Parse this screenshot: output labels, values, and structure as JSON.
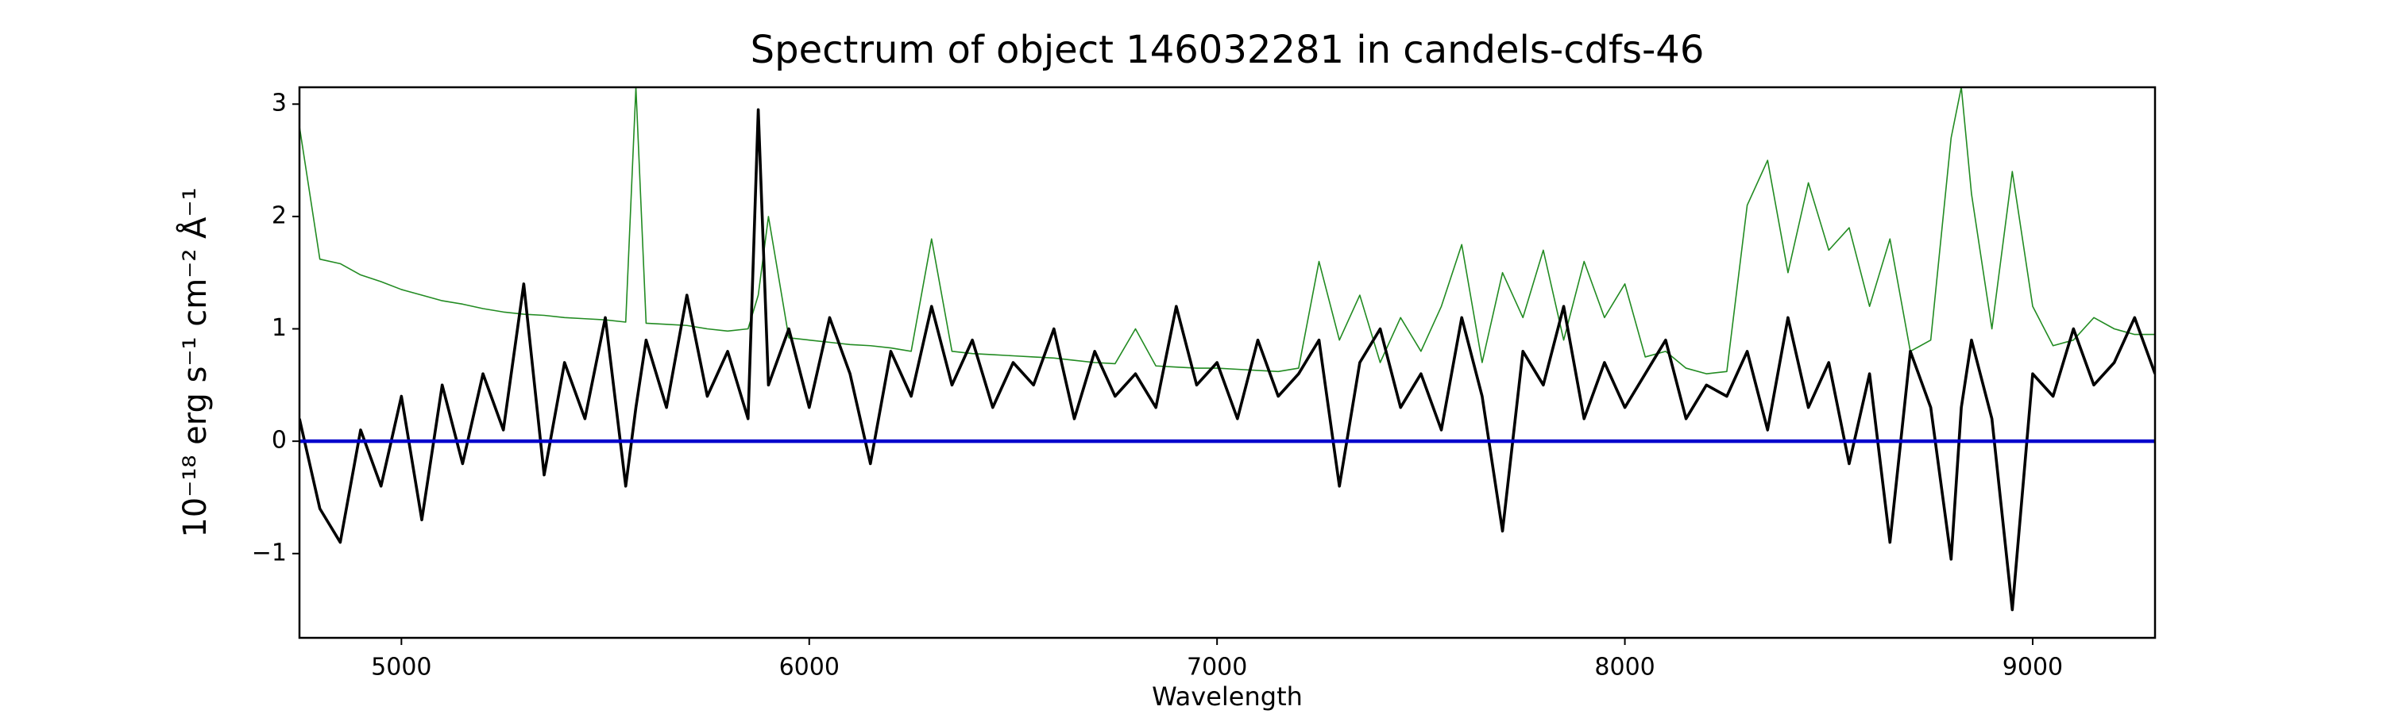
{
  "chart_data": {
    "type": "line",
    "title": "Spectrum of object 146032281 in candels-cdfs-46",
    "xlabel": "Wavelength",
    "ylabel": "10⁻¹⁸ erg s⁻¹ cm⁻² Å⁻¹",
    "x": [
      4750,
      4800,
      4850,
      4900,
      4950,
      5000,
      5050,
      5100,
      5150,
      5200,
      5250,
      5300,
      5350,
      5400,
      5450,
      5500,
      5550,
      5575,
      5600,
      5650,
      5700,
      5750,
      5800,
      5850,
      5875,
      5900,
      5950,
      6000,
      6050,
      6100,
      6150,
      6200,
      6250,
      6300,
      6350,
      6400,
      6450,
      6500,
      6550,
      6600,
      6650,
      6700,
      6750,
      6800,
      6850,
      6900,
      6950,
      7000,
      7050,
      7100,
      7150,
      7200,
      7250,
      7300,
      7350,
      7400,
      7450,
      7500,
      7550,
      7600,
      7650,
      7700,
      7750,
      7800,
      7850,
      7900,
      7950,
      8000,
      8050,
      8100,
      8150,
      8200,
      8250,
      8300,
      8350,
      8400,
      8450,
      8500,
      8550,
      8600,
      8650,
      8700,
      8750,
      8800,
      8825,
      8850,
      8900,
      8950,
      9000,
      9050,
      9100,
      9150,
      9200,
      9250,
      9300
    ],
    "series": [
      {
        "color": "#228b22",
        "values": [
          2.8,
          1.62,
          1.58,
          1.48,
          1.42,
          1.35,
          1.3,
          1.25,
          1.22,
          1.18,
          1.15,
          1.13,
          1.12,
          1.1,
          1.09,
          1.08,
          1.06,
          3.15,
          1.05,
          1.04,
          1.03,
          1.0,
          0.98,
          1.0,
          1.3,
          2.0,
          0.92,
          0.9,
          0.88,
          0.86,
          0.85,
          0.83,
          0.8,
          1.8,
          0.8,
          0.78,
          0.77,
          0.76,
          0.75,
          0.74,
          0.72,
          0.7,
          0.69,
          1.0,
          0.67,
          0.66,
          0.65,
          0.65,
          0.64,
          0.63,
          0.62,
          0.65,
          1.6,
          0.9,
          1.3,
          0.7,
          1.1,
          0.8,
          1.2,
          1.75,
          0.7,
          1.5,
          1.1,
          1.7,
          0.9,
          1.6,
          1.1,
          1.4,
          0.75,
          0.8,
          0.65,
          0.6,
          0.62,
          2.1,
          2.5,
          1.5,
          2.3,
          1.7,
          1.9,
          1.2,
          1.8,
          0.8,
          0.9,
          2.7,
          3.15,
          2.2,
          1.0,
          2.4,
          1.2,
          0.85,
          0.9,
          1.1,
          1.0,
          0.95,
          0.95
        ]
      },
      {
        "color": "#000000",
        "values": [
          0.2,
          -0.6,
          -0.9,
          0.1,
          -0.4,
          0.4,
          -0.7,
          0.5,
          -0.2,
          0.6,
          0.1,
          1.4,
          -0.3,
          0.7,
          0.2,
          1.1,
          -0.4,
          0.3,
          0.9,
          0.3,
          1.3,
          0.4,
          0.8,
          0.2,
          2.95,
          0.5,
          1.0,
          0.3,
          1.1,
          0.6,
          -0.2,
          0.8,
          0.4,
          1.2,
          0.5,
          0.9,
          0.3,
          0.7,
          0.5,
          1.0,
          0.2,
          0.8,
          0.4,
          0.6,
          0.3,
          1.2,
          0.5,
          0.7,
          0.2,
          0.9,
          0.4,
          0.6,
          0.9,
          -0.4,
          0.7,
          1.0,
          0.3,
          0.6,
          0.1,
          1.1,
          0.4,
          -0.8,
          0.8,
          0.5,
          1.2,
          0.2,
          0.7,
          0.3,
          0.6,
          0.9,
          0.2,
          0.5,
          0.4,
          0.8,
          0.1,
          1.1,
          0.3,
          0.7,
          -0.2,
          0.6,
          -0.9,
          0.8,
          0.3,
          -1.05,
          0.3,
          0.9,
          0.2,
          -1.5,
          0.6,
          0.4,
          1.0,
          0.5,
          0.7,
          1.1,
          0.6
        ]
      },
      {
        "color": "#0000cc",
        "values": [
          0,
          0,
          0,
          0,
          0,
          0,
          0,
          0,
          0,
          0,
          0,
          0,
          0,
          0,
          0,
          0,
          0,
          0,
          0,
          0,
          0,
          0,
          0,
          0,
          0,
          0,
          0,
          0,
          0,
          0,
          0,
          0,
          0,
          0,
          0,
          0,
          0,
          0,
          0,
          0,
          0,
          0,
          0,
          0,
          0,
          0,
          0,
          0,
          0,
          0,
          0,
          0,
          0,
          0,
          0,
          0,
          0,
          0,
          0,
          0,
          0,
          0,
          0,
          0,
          0,
          0,
          0,
          0,
          0,
          0,
          0,
          0,
          0,
          0,
          0,
          0,
          0,
          0,
          0,
          0,
          0,
          0,
          0,
          0,
          0,
          0,
          0,
          0,
          0,
          0,
          0,
          0,
          0,
          0,
          0
        ]
      }
    ],
    "xlim": [
      4750,
      9300
    ],
    "xticks": [
      5000,
      6000,
      7000,
      8000,
      9000
    ],
    "ylim": [
      -1.75,
      3.15
    ],
    "yticks": [
      {
        "value": -1,
        "label": "−1"
      },
      0,
      1,
      2,
      3
    ],
    "grid": false
  }
}
